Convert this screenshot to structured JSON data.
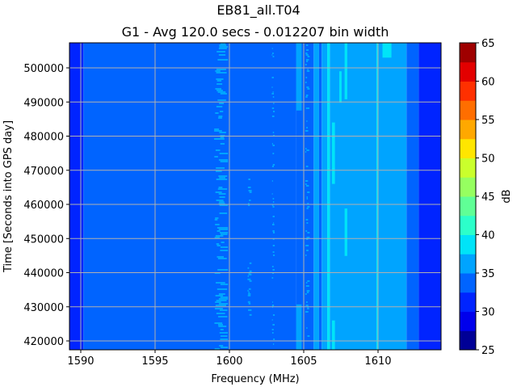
{
  "chart_data": {
    "type": "heatmap",
    "title": "EB81_all.T04",
    "subtitle": "G1 - Avg 120.0 secs - 0.012207 bin width",
    "xlabel": "Frequency (MHz)",
    "ylabel": "Time [Seconds into GPS day]",
    "xlim": [
      1589.24,
      1614.24
    ],
    "ylim": [
      417400,
      507340
    ],
    "xticks": [
      1590,
      1595,
      1600,
      1605,
      1610
    ],
    "xtick_labels": [
      "1590",
      "1595",
      "1600",
      "1605",
      "1610"
    ],
    "yticks": [
      420000,
      430000,
      440000,
      450000,
      460000,
      470000,
      480000,
      490000,
      500000
    ],
    "ytick_labels": [
      "420000",
      "430000",
      "440000",
      "450000",
      "460000",
      "470000",
      "480000",
      "490000",
      "500000"
    ],
    "grid": true,
    "colorbar": {
      "label": "dB",
      "levels": [
        25,
        27.5,
        30,
        32.5,
        35,
        37.5,
        40,
        42.5,
        45,
        47.5,
        50,
        52.5,
        55,
        57.5,
        60,
        62.5,
        65
      ],
      "ticks": [
        25,
        30,
        35,
        40,
        45,
        50,
        55,
        60,
        65
      ],
      "tick_labels": [
        "25",
        "30",
        "35",
        "40",
        "45",
        "50",
        "55",
        "60",
        "65"
      ],
      "colors": [
        "#000096",
        "#0000ec",
        "#0024ff",
        "#0064ff",
        "#00a4ff",
        "#00e4f8",
        "#2cffca",
        "#60ff96",
        "#96ff60",
        "#caff2c",
        "#ffe600",
        "#ffa800",
        "#ff6e00",
        "#ff3000",
        "#e30000",
        "#9f0000"
      ]
    },
    "bands_db": [
      {
        "f": [
          1589.24,
          1590.18
        ],
        "db": 31
      },
      {
        "f": [
          1590.18,
          1604.49
        ],
        "db": 34
      },
      {
        "f": [
          1604.49,
          1605.67
        ],
        "db": 34
      },
      {
        "f": [
          1605.67,
          1606.03
        ],
        "db": 36
      },
      {
        "f": [
          1606.03,
          1606.21
        ],
        "db": 34
      },
      {
        "f": [
          1606.21,
          1606.58
        ],
        "db": 36
      },
      {
        "f": [
          1606.58,
          1606.76
        ],
        "db": 39
      },
      {
        "f": [
          1606.76,
          1611.92
        ],
        "db": 36
      },
      {
        "f": [
          1609.89,
          1610.02
        ],
        "db": 38
      },
      {
        "f": [
          1611.92,
          1612.74
        ],
        "db": 34
      },
      {
        "f": [
          1612.74,
          1614.24
        ],
        "db": 31
      }
    ],
    "segments_db": [
      {
        "f": [
          1604.49,
          1604.86
        ],
        "t": [
          487500,
          507340
        ],
        "db": 36
      },
      {
        "f": [
          1604.49,
          1604.86
        ],
        "t": [
          417400,
          430700
        ],
        "db": 36
      },
      {
        "f": [
          1607.75,
          1607.93
        ],
        "t": [
          490800,
          507340
        ],
        "db": 39
      },
      {
        "f": [
          1607.75,
          1607.93
        ],
        "t": [
          444900,
          458800
        ],
        "db": 39
      },
      {
        "f": [
          1607.39,
          1607.55
        ],
        "t": [
          489800,
          499000
        ],
        "db": 39
      },
      {
        "f": [
          1606.9,
          1607.1
        ],
        "t": [
          466000,
          484000
        ],
        "db": 39
      },
      {
        "f": [
          1606.9,
          1607.1
        ],
        "t": [
          417400,
          426000
        ],
        "db": 39
      },
      {
        "f": [
          1610.3,
          1610.9
        ],
        "t": [
          503000,
          507340
        ],
        "db": 39
      }
    ],
    "speckle_db": [
      {
        "f": [
          1598.97,
          1599.9
        ],
        "t": [
          417400,
          507340
        ],
        "db": 36,
        "density": 0.55
      },
      {
        "f": [
          1602.85,
          1603.05
        ],
        "t": [
          417400,
          507340
        ],
        "db": 36,
        "density": 0.3
      },
      {
        "f": [
          1601.2,
          1601.5
        ],
        "t": [
          427000,
          443000
        ],
        "db": 36,
        "density": 0.5
      },
      {
        "f": [
          1601.2,
          1601.5
        ],
        "t": [
          460000,
          469000
        ],
        "db": 36,
        "density": 0.5
      },
      {
        "f": [
          1605.1,
          1605.4
        ],
        "t": [
          417400,
          507340
        ],
        "db": 36,
        "density": 0.3
      },
      {
        "f": [
          1610.3,
          1610.9
        ],
        "t": [
          417400,
          507340
        ],
        "db": 36,
        "density": 0.12
      }
    ]
  }
}
